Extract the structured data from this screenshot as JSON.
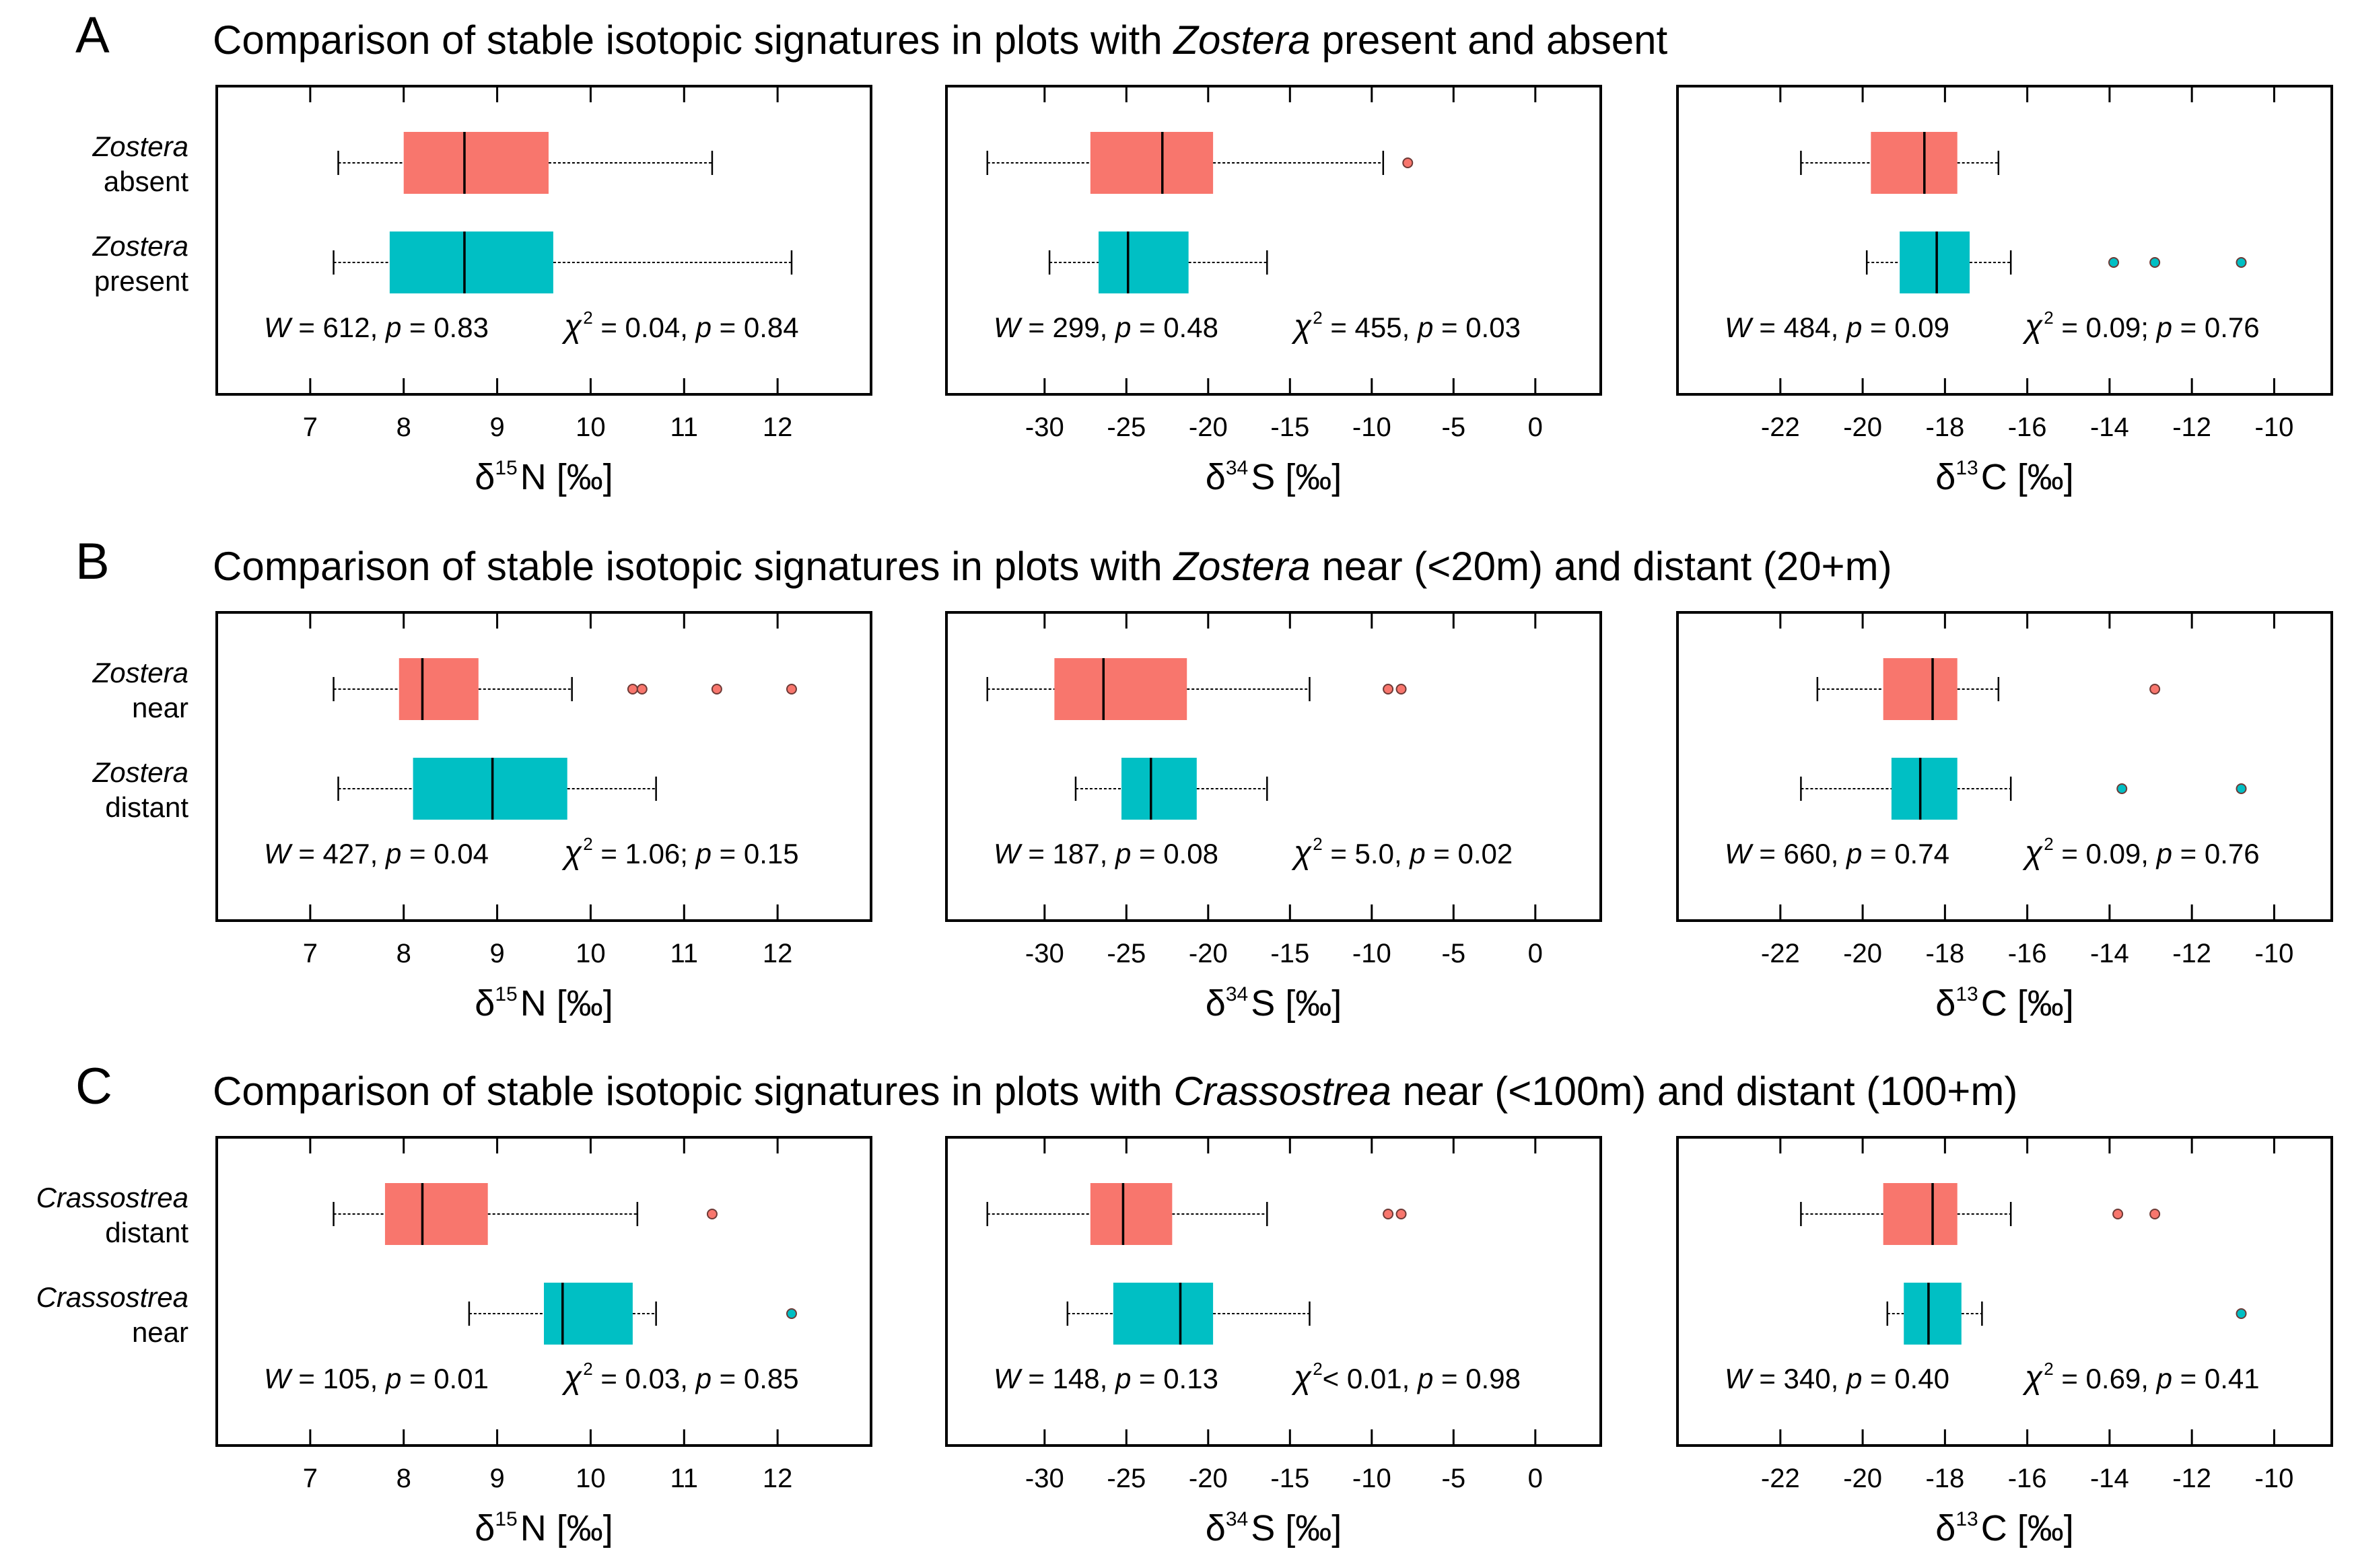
{
  "colors": {
    "absent_near": "#f8766d",
    "present_distant": "#00bfc4",
    "outlier_edge": "#6d3a36"
  },
  "rows": [
    {
      "letter": "A",
      "title_pre": "Comparison of stable isotopic signatures in plots with ",
      "title_taxon": "Zostera",
      "title_post": " present and absent",
      "groups": [
        {
          "taxon": "Zostera",
          "label": "absent"
        },
        {
          "taxon": "Zostera",
          "label": "present"
        }
      ]
    },
    {
      "letter": "B",
      "title_pre": "Comparison of stable isotopic signatures in plots with ",
      "title_taxon": "Zostera",
      "title_post": " near (<20m) and distant (20+m)",
      "groups": [
        {
          "taxon": "Zostera",
          "label": "near"
        },
        {
          "taxon": "Zostera",
          "label": "distant"
        }
      ]
    },
    {
      "letter": "C",
      "title_pre": "Comparison of stable isotopic signatures in plots with ",
      "title_taxon": "Crassostrea",
      "title_post": " near (<100m) and distant (100+m)",
      "groups": [
        {
          "taxon": "Crassostrea",
          "label": "distant"
        },
        {
          "taxon": "Crassostrea",
          "label": "near"
        }
      ]
    }
  ],
  "axes": [
    {
      "key": "N",
      "delta": "δ",
      "sup": "15",
      "elem": "N [‰]",
      "ticks": [
        7,
        8,
        9,
        10,
        11,
        12
      ],
      "tick_labels": [
        "7",
        "8",
        "9",
        "10",
        "11",
        "12"
      ],
      "xlim": [
        6.0,
        13.0
      ]
    },
    {
      "key": "S",
      "delta": "δ",
      "sup": "34",
      "elem": "S [‰]",
      "ticks": [
        -30,
        -25,
        -20,
        -15,
        -10,
        -5,
        0
      ],
      "tick_labels": [
        "-30",
        "-25",
        "-20",
        "-15",
        "-10",
        "-5",
        "0"
      ],
      "xlim": [
        -36.0,
        4.0
      ]
    },
    {
      "key": "C",
      "delta": "δ",
      "sup": "13",
      "elem": "C [‰]",
      "ticks": [
        -22,
        -20,
        -18,
        -16,
        -14,
        -12,
        -10
      ],
      "tick_labels": [
        "-22",
        "-20",
        "-18",
        "-16",
        "-14",
        "-12",
        "-10"
      ],
      "xlim": [
        -24.5,
        -8.6
      ]
    }
  ],
  "chart_data": [
    {
      "type": "boxplot",
      "row": "A",
      "axis": "N",
      "xlabel": "δ15N [‰]",
      "series": [
        {
          "name": "Zostera absent",
          "whisker_low": 7.3,
          "q1": 8.0,
          "median": 8.65,
          "q3": 9.55,
          "whisker_high": 11.3,
          "outliers": []
        },
        {
          "name": "Zostera present",
          "whisker_low": 7.25,
          "q1": 7.85,
          "median": 8.65,
          "q3": 9.6,
          "whisker_high": 12.15,
          "outliers": []
        }
      ],
      "stat_w": "612",
      "stat_p1": "0.83",
      "stat_chi": "0.04",
      "stat_sep": ",",
      "stat_p2": "0.84",
      "chi_op": " = "
    },
    {
      "type": "boxplot",
      "row": "A",
      "axis": "S",
      "xlabel": "δ34S [‰]",
      "series": [
        {
          "name": "Zostera absent",
          "whisker_low": -33.5,
          "q1": -27.2,
          "median": -22.8,
          "q3": -19.7,
          "whisker_high": -9.3,
          "outliers": [
            -7.8
          ]
        },
        {
          "name": "Zostera present",
          "whisker_low": -29.7,
          "q1": -26.7,
          "median": -24.9,
          "q3": -21.2,
          "whisker_high": -16.4,
          "outliers": []
        }
      ],
      "stat_w": "299",
      "stat_p1": "0.48",
      "stat_chi": "455",
      "stat_sep": ",",
      "stat_p2": "0.03",
      "chi_op": " = "
    },
    {
      "type": "boxplot",
      "row": "A",
      "axis": "C",
      "xlabel": "δ13C [‰]",
      "series": [
        {
          "name": "Zostera absent",
          "whisker_low": -21.5,
          "q1": -19.8,
          "median": -18.5,
          "q3": -17.7,
          "whisker_high": -16.7,
          "outliers": []
        },
        {
          "name": "Zostera present",
          "whisker_low": -19.9,
          "q1": -19.1,
          "median": -18.2,
          "q3": -17.4,
          "whisker_high": -16.4,
          "outliers": [
            -13.9,
            -12.9,
            -10.8
          ]
        }
      ],
      "stat_w": "484",
      "stat_p1": "0.09",
      "stat_chi": "0.09",
      "stat_sep": ";",
      "stat_p2": "0.76",
      "chi_op": " = "
    },
    {
      "type": "boxplot",
      "row": "B",
      "axis": "N",
      "xlabel": "δ15N [‰]",
      "series": [
        {
          "name": "Zostera near",
          "whisker_low": 7.25,
          "q1": 7.95,
          "median": 8.2,
          "q3": 8.8,
          "whisker_high": 9.8,
          "outliers": [
            10.45,
            10.55,
            11.35,
            12.15
          ]
        },
        {
          "name": "Zostera distant",
          "whisker_low": 7.3,
          "q1": 8.1,
          "median": 8.95,
          "q3": 9.75,
          "whisker_high": 10.7,
          "outliers": []
        }
      ],
      "stat_w": "427",
      "stat_p1": "0.04",
      "stat_chi": "1.06",
      "stat_sep": ";",
      "stat_p2": "0.15",
      "chi_op": " = "
    },
    {
      "type": "boxplot",
      "row": "B",
      "axis": "S",
      "xlabel": "δ34S [‰]",
      "series": [
        {
          "name": "Zostera near",
          "whisker_low": -33.5,
          "q1": -29.4,
          "median": -26.4,
          "q3": -21.3,
          "whisker_high": -13.8,
          "outliers": [
            -9.0,
            -8.2
          ]
        },
        {
          "name": "Zostera distant",
          "whisker_low": -28.1,
          "q1": -25.3,
          "median": -23.5,
          "q3": -20.7,
          "whisker_high": -16.4,
          "outliers": []
        }
      ],
      "stat_w": "187",
      "stat_p1": "0.08",
      "stat_chi": "5.0",
      "stat_sep": ",",
      "stat_p2": "0.02",
      "chi_op": " = "
    },
    {
      "type": "boxplot",
      "row": "B",
      "axis": "C",
      "xlabel": "δ13C [‰]",
      "series": [
        {
          "name": "Zostera near",
          "whisker_low": -21.1,
          "q1": -19.5,
          "median": -18.3,
          "q3": -17.7,
          "whisker_high": -16.7,
          "outliers": [
            -12.9
          ]
        },
        {
          "name": "Zostera distant",
          "whisker_low": -21.5,
          "q1": -19.3,
          "median": -18.6,
          "q3": -17.7,
          "whisker_high": -16.4,
          "outliers": [
            -13.7,
            -10.8
          ]
        }
      ],
      "stat_w": "660",
      "stat_p1": "0.74",
      "stat_chi": "0.09",
      "stat_sep": ",",
      "stat_p2": "0.76",
      "chi_op": " = "
    },
    {
      "type": "boxplot",
      "row": "C",
      "axis": "N",
      "xlabel": "δ15N [‰]",
      "series": [
        {
          "name": "Crassostrea distant",
          "whisker_low": 7.25,
          "q1": 7.8,
          "median": 8.2,
          "q3": 8.9,
          "whisker_high": 10.5,
          "outliers": [
            11.3
          ]
        },
        {
          "name": "Crassostrea near",
          "whisker_low": 8.7,
          "q1": 9.5,
          "median": 9.7,
          "q3": 10.45,
          "whisker_high": 10.7,
          "outliers": [
            12.15
          ]
        }
      ],
      "stat_w": "105",
      "stat_p1": "0.01",
      "stat_chi": "0.03",
      "stat_sep": ",",
      "stat_p2": "0.85",
      "chi_op": " = "
    },
    {
      "type": "boxplot",
      "row": "C",
      "axis": "S",
      "xlabel": "δ34S [‰]",
      "series": [
        {
          "name": "Crassostrea distant",
          "whisker_low": -33.5,
          "q1": -27.2,
          "median": -25.2,
          "q3": -22.2,
          "whisker_high": -16.4,
          "outliers": [
            -9.0,
            -8.2
          ]
        },
        {
          "name": "Crassostrea near",
          "whisker_low": -28.6,
          "q1": -25.8,
          "median": -21.7,
          "q3": -19.7,
          "whisker_high": -13.8,
          "outliers": []
        }
      ],
      "stat_w": "148",
      "stat_p1": "0.13",
      "stat_chi": "< 0.01",
      "stat_sep": ",",
      "stat_p2": "0.98",
      "chi_op": ""
    },
    {
      "type": "boxplot",
      "row": "C",
      "axis": "C",
      "xlabel": "δ13C [‰]",
      "series": [
        {
          "name": "Crassostrea distant",
          "whisker_low": -21.5,
          "q1": -19.5,
          "median": -18.3,
          "q3": -17.7,
          "whisker_high": -16.4,
          "outliers": [
            -13.8,
            -12.9
          ]
        },
        {
          "name": "Crassostrea near",
          "whisker_low": -19.4,
          "q1": -19.0,
          "median": -18.4,
          "q3": -17.6,
          "whisker_high": -17.1,
          "outliers": [
            -10.8
          ]
        }
      ],
      "stat_w": "340",
      "stat_p1": "0.40",
      "stat_chi": "0.69",
      "stat_sep": ",",
      "stat_p2": "0.41",
      "chi_op": " = "
    }
  ]
}
